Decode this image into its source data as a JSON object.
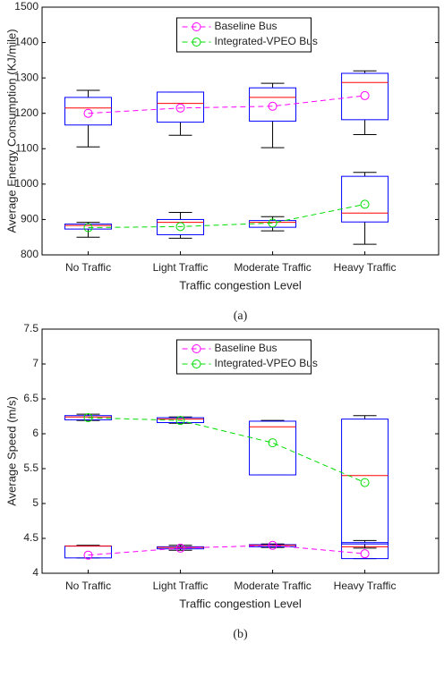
{
  "chart_data": [
    {
      "type": "box",
      "caption": "(a)",
      "xlabel": "Traffic congestion Level",
      "ylabel": "Average Energy Consumption (KJ/mile)",
      "categories": [
        "No Traffic",
        "Light Traffic",
        "Moderate Traffic",
        "Heavy Traffic"
      ],
      "ylim": [
        800,
        1500
      ],
      "yticks": [
        800,
        900,
        1000,
        1100,
        1200,
        1300,
        1400,
        1500
      ],
      "box_color": "#0000ff",
      "median_color": "#ff0000",
      "whisker_color": "#000000",
      "legend": "north",
      "series": [
        {
          "name": "Baseline Bus",
          "color": "#ff00ff",
          "values": [
            1200,
            1215,
            1220,
            1250
          ],
          "boxes": [
            {
              "min": 1105,
              "q1": 1167,
              "median": 1215,
              "q3": 1245,
              "max": 1265
            },
            {
              "min": 1138,
              "q1": 1175,
              "median": 1228,
              "q3": 1260,
              "max": 1260
            },
            {
              "min": 1103,
              "q1": 1178,
              "median": 1245,
              "q3": 1272,
              "max": 1285
            },
            {
              "min": 1140,
              "q1": 1182,
              "median": 1287,
              "q3": 1313,
              "max": 1320
            }
          ]
        },
        {
          "name": "Integrated-VPEO Bus",
          "color": "#00dd00",
          "values": [
            877,
            880,
            890,
            943
          ],
          "boxes": [
            {
              "min": 850,
              "q1": 873,
              "median": 883,
              "q3": 887,
              "max": 892
            },
            {
              "min": 847,
              "q1": 857,
              "median": 892,
              "q3": 900,
              "max": 920
            },
            {
              "min": 868,
              "q1": 878,
              "median": 892,
              "q3": 897,
              "max": 908
            },
            {
              "min": 830,
              "q1": 893,
              "median": 918,
              "q3": 1022,
              "max": 1033
            }
          ]
        }
      ]
    },
    {
      "type": "box",
      "caption": "(b)",
      "xlabel": "Traffic congestion Level",
      "ylabel": "Average Speed (m/s)",
      "categories": [
        "No Traffic",
        "Light Traffic",
        "Moderate Traffic",
        "Heavy Traffic"
      ],
      "ylim": [
        4,
        7.5
      ],
      "yticks": [
        4,
        4.5,
        5,
        5.5,
        6,
        6.5,
        7,
        7.5
      ],
      "box_color": "#0000ff",
      "median_color": "#ff0000",
      "whisker_color": "#000000",
      "legend": "north",
      "series": [
        {
          "name": "Baseline Bus",
          "color": "#ff00ff",
          "values": [
            4.26,
            4.36,
            4.4,
            4.28
          ],
          "boxes": [
            {
              "min": 4.22,
              "q1": 4.22,
              "median": 4.39,
              "q3": 4.39,
              "max": 4.4
            },
            {
              "min": 4.33,
              "q1": 4.35,
              "median": 4.37,
              "q3": 4.38,
              "max": 4.4
            },
            {
              "min": 4.37,
              "q1": 4.38,
              "median": 4.4,
              "q3": 4.41,
              "max": 4.42
            },
            {
              "min": 4.21,
              "q1": 4.21,
              "median": 4.38,
              "q3": 4.44,
              "max": 4.47
            }
          ]
        },
        {
          "name": "Integrated-VPEO Bus",
          "color": "#00dd00",
          "values": [
            6.23,
            6.19,
            5.87,
            5.3
          ],
          "boxes": [
            {
              "min": 6.19,
              "q1": 6.2,
              "median": 6.24,
              "q3": 6.26,
              "max": 6.28
            },
            {
              "min": 6.15,
              "q1": 6.16,
              "median": 6.21,
              "q3": 6.23,
              "max": 6.24
            },
            {
              "min": 5.41,
              "q1": 5.41,
              "median": 6.1,
              "q3": 6.18,
              "max": 6.19
            },
            {
              "min": 4.36,
              "q1": 4.42,
              "median": 5.4,
              "q3": 6.21,
              "max": 6.26
            }
          ]
        }
      ]
    }
  ]
}
